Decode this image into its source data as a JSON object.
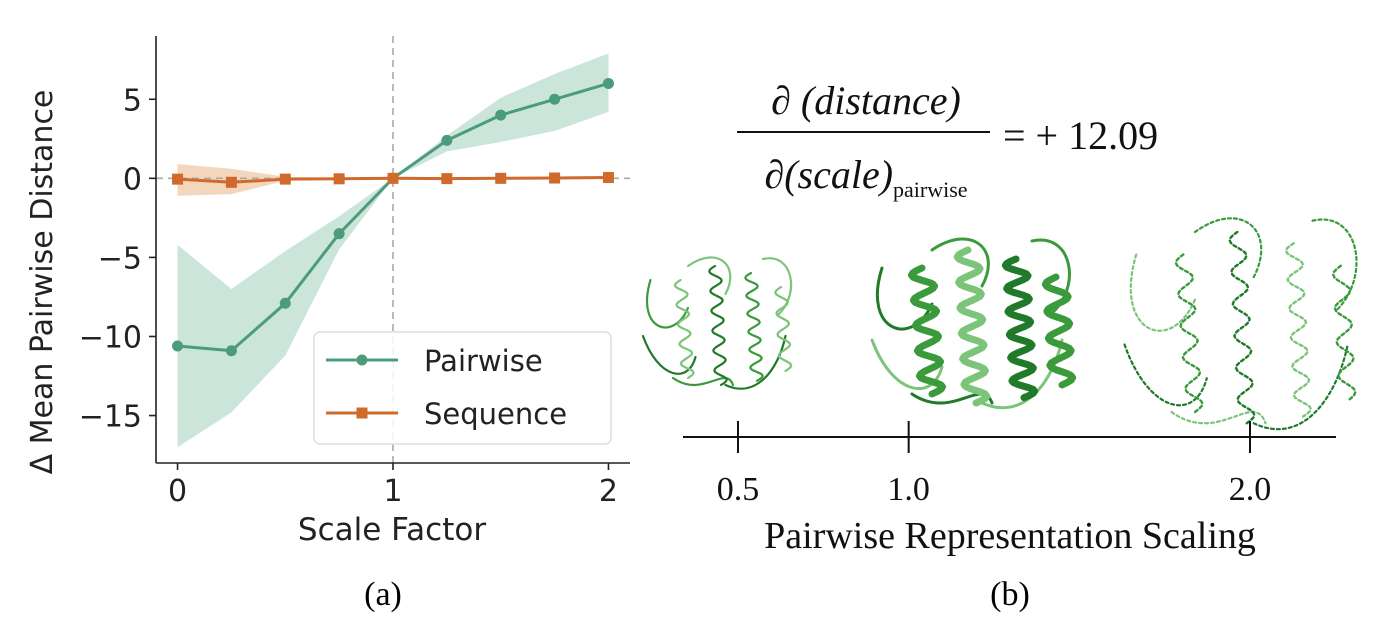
{
  "colors": {
    "pairwise": "#4a9c7c",
    "pairwise_band": "#b9dccd",
    "sequence": "#cf6a2c",
    "sequence_band": "#f2cfb2",
    "protein": "#3a9a3c",
    "protein_dark": "#207a2a",
    "protein_light": "#7cc47a"
  },
  "chart_data": [
    {
      "type": "line",
      "panel_label": "(a)",
      "xlabel": "Scale Factor",
      "ylabel": "Δ Mean Pairwise Distance",
      "xlim": [
        -0.1,
        2.1
      ],
      "ylim": [
        -18,
        9
      ],
      "x_ticks": [
        0,
        1,
        2
      ],
      "y_ticks": [
        5,
        0,
        -5,
        -10,
        -15
      ],
      "x_tick_labels": [
        "0",
        "1",
        "2"
      ],
      "y_tick_labels": [
        "5",
        "0",
        "−5",
        "−10",
        "−15"
      ],
      "reference_lines": {
        "vertical_x": 1,
        "horizontal_y": 0,
        "style": "dashed"
      },
      "legend_position": "lower-right",
      "x": [
        0,
        0.25,
        0.5,
        0.75,
        1.0,
        1.25,
        1.5,
        1.75,
        2.0
      ],
      "series": [
        {
          "name": "Pairwise",
          "marker": "circle",
          "values": [
            -10.6,
            -10.9,
            -7.9,
            -3.5,
            0.0,
            2.4,
            4.0,
            5.0,
            6.0
          ],
          "lower": [
            -17.0,
            -14.8,
            -11.2,
            -4.5,
            0.0,
            1.7,
            2.3,
            3.0,
            4.2
          ],
          "upper": [
            -4.2,
            -7.0,
            -4.6,
            -2.4,
            0.0,
            2.7,
            5.1,
            6.6,
            7.9
          ]
        },
        {
          "name": "Sequence",
          "marker": "square",
          "values": [
            -0.05,
            -0.25,
            -0.05,
            -0.03,
            0.0,
            -0.02,
            0.0,
            0.02,
            0.05
          ],
          "lower": [
            -1.1,
            -1.0,
            -0.15,
            -0.08,
            0.0,
            -0.06,
            -0.05,
            -0.04,
            -0.02
          ],
          "upper": [
            0.9,
            0.6,
            0.1,
            0.04,
            0.0,
            0.03,
            0.05,
            0.08,
            0.12
          ]
        }
      ]
    },
    {
      "type": "diagram",
      "panel_label": "(b)",
      "equation": {
        "numerator": "∂ (distance)",
        "denominator": "∂(scale)",
        "denominator_subscript": "pairwise",
        "result": "= + 12.09"
      },
      "axis_title": "Pairwise Representation Scaling",
      "ticks": [
        {
          "value": 0.5,
          "label": "0.5",
          "structure": "compact, thin loops"
        },
        {
          "value": 1.0,
          "label": "1.0",
          "structure": "folded helices"
        },
        {
          "value": 2.0,
          "label": "2.0",
          "structure": "expanded, dashed backbone"
        }
      ]
    }
  ]
}
